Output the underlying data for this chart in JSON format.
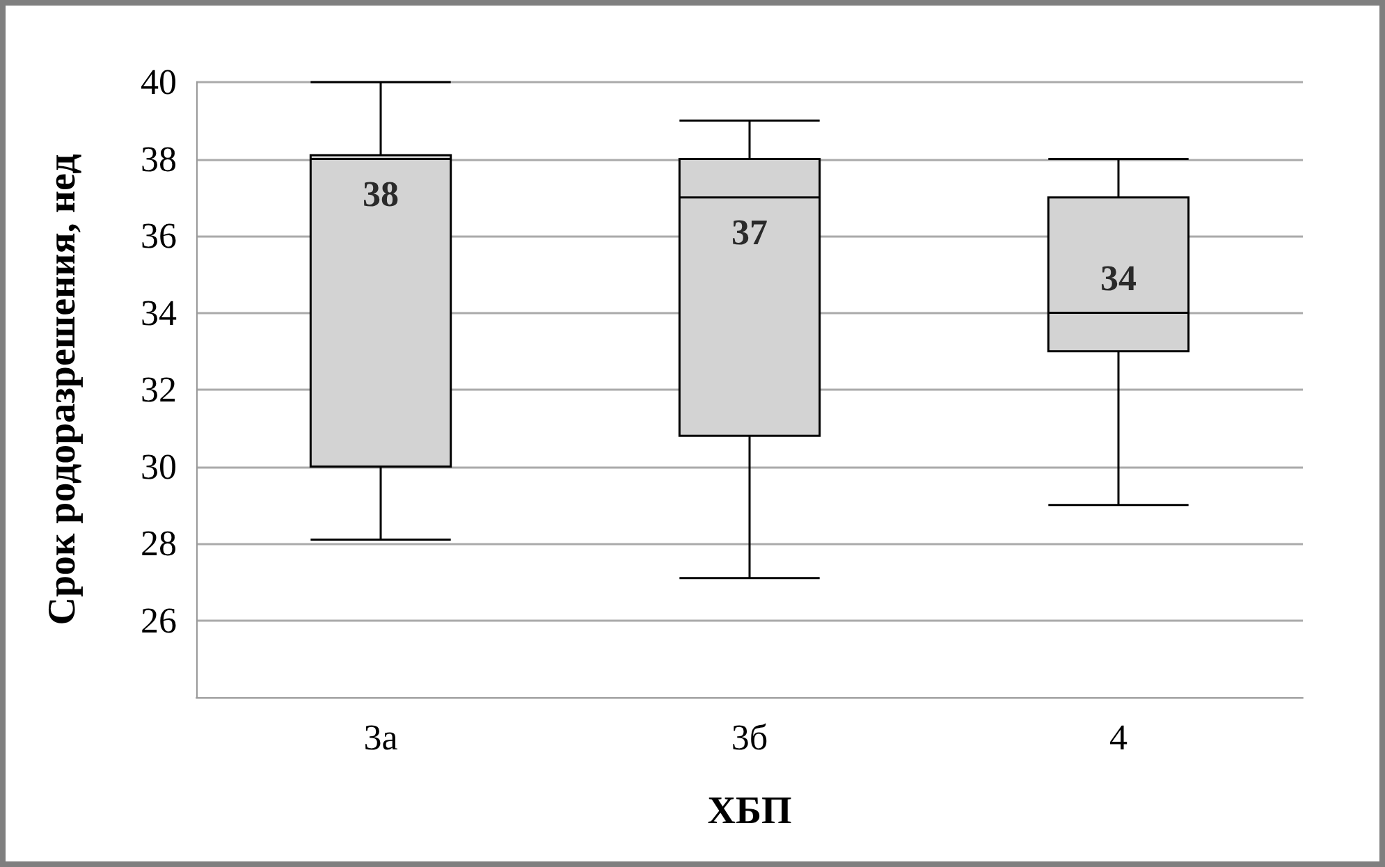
{
  "chart_data": {
    "type": "box",
    "xlabel": "ХБП",
    "ylabel": "Срок родоразрешения, нед",
    "categories": [
      "3а",
      "3б",
      "4"
    ],
    "boxes": [
      {
        "low": 28.1,
        "q1": 30,
        "median": 38,
        "q3": 38.1,
        "high": 40
      },
      {
        "low": 27.1,
        "q1": 30.8,
        "median": 37,
        "q3": 38,
        "high": 39
      },
      {
        "low": 29,
        "q1": 33,
        "median": 34,
        "q3": 37,
        "high": 38
      }
    ],
    "color": "#d3d3d3",
    "ylim": [
      24,
      40
    ],
    "yticks": [
      26,
      28,
      30,
      32,
      34,
      36,
      38,
      40
    ],
    "grid": "y",
    "value_labels": [
      "38",
      "37",
      "34"
    ]
  }
}
